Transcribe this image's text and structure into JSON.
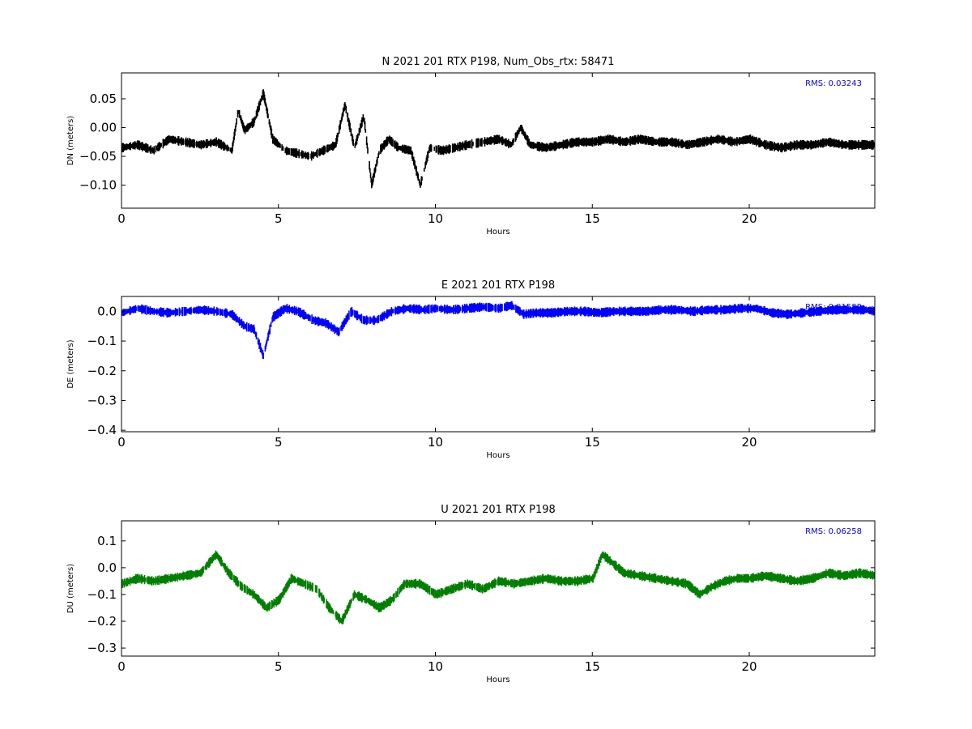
{
  "chart_data": [
    {
      "type": "scatter",
      "title": "N 2021 201 RTX  P198, Num_Obs_rtx: 58471",
      "xlabel": "Hours",
      "ylabel": "DN (meters)",
      "xlim": [
        0,
        24
      ],
      "ylim": [
        -0.14,
        0.095
      ],
      "xticks": [
        "0",
        "5",
        "10",
        "15",
        "20"
      ],
      "yticks": [
        "0.05",
        "0.00",
        "−0.05",
        "−0.10"
      ],
      "color": "#000000",
      "annotation": "RMS:  0.03243",
      "annotation_color": "#0000ff",
      "grid": false,
      "series": [
        {
          "x": [
            0,
            0.5,
            1,
            1.5,
            2,
            2.5,
            3,
            3.5,
            3.7,
            3.9,
            4.2,
            4.5,
            4.8,
            5.2,
            5.6,
            6,
            6.4,
            6.8,
            7.1,
            7.4,
            7.7,
            7.95,
            8.2,
            8.5,
            8.8,
            9.2,
            9.5,
            9.8,
            10.2,
            10.6,
            11,
            11.5,
            12,
            12.4,
            12.7,
            13,
            13.5,
            14,
            14.5,
            15,
            15.5,
            16,
            16.5,
            17,
            17.5,
            18,
            18.5,
            19,
            19.5,
            20,
            20.5,
            21,
            21.5,
            22,
            22.5,
            23,
            23.5,
            24
          ],
          "y": [
            -0.035,
            -0.03,
            -0.04,
            -0.02,
            -0.025,
            -0.03,
            -0.025,
            -0.04,
            0.03,
            -0.005,
            0.01,
            0.06,
            -0.02,
            -0.04,
            -0.045,
            -0.05,
            -0.04,
            -0.03,
            0.04,
            -0.035,
            0.02,
            -0.1,
            -0.04,
            -0.02,
            -0.035,
            -0.04,
            -0.1,
            -0.035,
            -0.04,
            -0.035,
            -0.03,
            -0.025,
            -0.02,
            -0.03,
            0.0,
            -0.03,
            -0.035,
            -0.03,
            -0.025,
            -0.025,
            -0.02,
            -0.025,
            -0.02,
            -0.025,
            -0.025,
            -0.03,
            -0.025,
            -0.02,
            -0.025,
            -0.02,
            -0.03,
            -0.035,
            -0.03,
            -0.03,
            -0.025,
            -0.03,
            -0.03,
            -0.03
          ]
        }
      ]
    },
    {
      "type": "scatter",
      "title": "E 2021 201 RTX  P198",
      "xlabel": "Hours",
      "ylabel": "DE (meters)",
      "xlim": [
        0,
        24
      ],
      "ylim": [
        -0.405,
        0.05
      ],
      "xticks": [
        "0",
        "5",
        "10",
        "15",
        "20"
      ],
      "yticks": [
        "0.0",
        "−0.1",
        "−0.2",
        "−0.3",
        "−0.4"
      ],
      "color": "#0000ff",
      "annotation": "RMS:  0.01582",
      "annotation_color": "#0000ff",
      "grid": false,
      "series": [
        {
          "x": [
            0,
            0.5,
            1,
            1.5,
            2,
            2.5,
            3,
            3.5,
            3.9,
            4.2,
            4.5,
            4.8,
            5.2,
            5.6,
            6.1,
            6.5,
            6.9,
            7.3,
            7.7,
            8.1,
            8.6,
            9.1,
            9.6,
            10,
            10.5,
            11,
            11.5,
            12,
            12.4,
            12.8,
            13.2,
            13.7,
            14.2,
            14.7,
            15.2,
            15.7,
            16.2,
            16.7,
            17.2,
            17.7,
            18.2,
            18.7,
            19.2,
            19.7,
            20.2,
            20.7,
            21.2,
            21.7,
            22.2,
            22.7,
            23.2,
            23.7,
            24
          ],
          "y": [
            -0.005,
            0.01,
            0.0,
            -0.005,
            0.0,
            0.005,
            0.0,
            -0.01,
            -0.05,
            -0.06,
            -0.15,
            -0.02,
            0.01,
            0.0,
            -0.03,
            -0.04,
            -0.07,
            0.0,
            -0.03,
            -0.03,
            0.0,
            0.01,
            0.005,
            0.01,
            0.005,
            0.01,
            0.015,
            0.01,
            0.02,
            -0.01,
            -0.005,
            -0.005,
            0.0,
            0.0,
            -0.005,
            0.0,
            0.0,
            0.0,
            0.005,
            0.005,
            0.0,
            0.005,
            0.005,
            0.01,
            0.01,
            -0.005,
            -0.01,
            -0.005,
            0.0,
            0.005,
            0.005,
            0.005,
            0.0
          ]
        }
      ]
    },
    {
      "type": "scatter",
      "title": "U 2021 201 RTX  P198",
      "xlabel": "Hours",
      "ylabel": "DU (meters)",
      "xlim": [
        0,
        24
      ],
      "ylim": [
        -0.33,
        0.175
      ],
      "xticks": [
        "0",
        "5",
        "10",
        "15",
        "20"
      ],
      "yticks": [
        "0.1",
        "0.0",
        "−0.1",
        "−0.2",
        "−0.3"
      ],
      "color": "#007f00",
      "annotation": "RMS:  0.06258",
      "annotation_color": "#0000ff",
      "grid": false,
      "series": [
        {
          "x": [
            0,
            0.5,
            1,
            1.5,
            2,
            2.5,
            3,
            3.4,
            3.8,
            4.2,
            4.6,
            5,
            5.4,
            5.8,
            6.2,
            6.6,
            7,
            7.4,
            7.8,
            8.2,
            8.6,
            9,
            9.5,
            10,
            10.5,
            11,
            11.5,
            12,
            12.5,
            13,
            13.5,
            14,
            14.5,
            15,
            15.3,
            15.6,
            16,
            16.5,
            17,
            17.5,
            18,
            18.4,
            18.8,
            19.2,
            19.6,
            20,
            20.5,
            21,
            21.5,
            22,
            22.5,
            23,
            23.5,
            24
          ],
          "y": [
            -0.06,
            -0.04,
            -0.05,
            -0.04,
            -0.03,
            -0.02,
            0.05,
            -0.02,
            -0.07,
            -0.1,
            -0.15,
            -0.12,
            -0.04,
            -0.06,
            -0.08,
            -0.15,
            -0.2,
            -0.1,
            -0.12,
            -0.15,
            -0.12,
            -0.06,
            -0.06,
            -0.1,
            -0.08,
            -0.06,
            -0.08,
            -0.05,
            -0.06,
            -0.05,
            -0.04,
            -0.05,
            -0.05,
            -0.04,
            0.05,
            0.02,
            -0.02,
            -0.03,
            -0.04,
            -0.05,
            -0.06,
            -0.1,
            -0.07,
            -0.05,
            -0.04,
            -0.04,
            -0.03,
            -0.04,
            -0.05,
            -0.04,
            -0.02,
            -0.03,
            -0.02,
            -0.03
          ]
        }
      ]
    }
  ]
}
